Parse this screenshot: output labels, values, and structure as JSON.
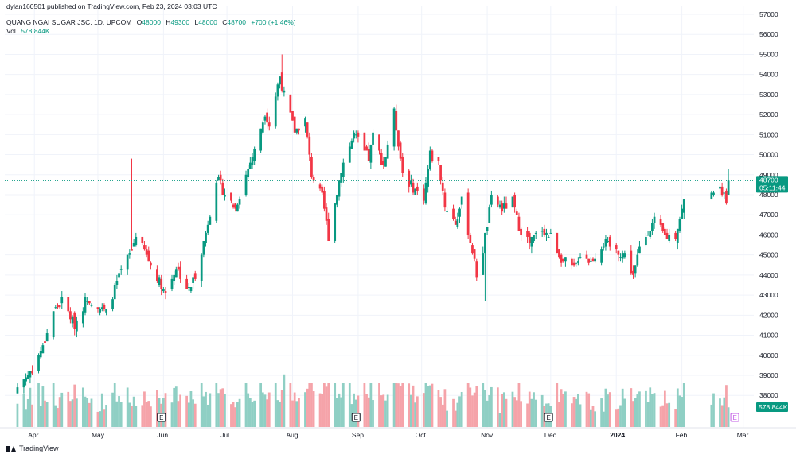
{
  "publisher_line": "dylan160501 published on TradingView.com, Feb 23, 2024 03:03 UTC",
  "legend": {
    "symbol": "QUANG NGAI SUGAR JSC, 1D, UPCOM",
    "open_label": "O",
    "open": "48000",
    "high_label": "H",
    "high": "49300",
    "low_label": "L",
    "low": "48000",
    "close_label": "C",
    "close": "48700",
    "change": "+700 (+1.46%)",
    "vol_label": "Vol",
    "vol": "578.844K"
  },
  "price_tag": {
    "price": "48700",
    "countdown": "05:11:44"
  },
  "volume_tag": "578.844K",
  "footer_brand": "TradingView",
  "earnings_marker": "E",
  "colors": {
    "up": "#089981",
    "down": "#F23645",
    "vol_up": "#8FCFC4",
    "vol_down": "#F5A3A9",
    "grid": "#F0F3FA",
    "text": "#131722",
    "earnings_next": "#C15BE5"
  },
  "chart_data": {
    "type": "candlestick",
    "title": "QUANG NGAI SUGAR JSC, 1D, UPCOM",
    "ylim": [
      36700,
      57000
    ],
    "y_ticks": [
      38000,
      39000,
      40000,
      41000,
      42000,
      43000,
      44000,
      45000,
      46000,
      47000,
      48000,
      49000,
      50000,
      51000,
      52000,
      53000,
      54000,
      55000,
      56000,
      57000
    ],
    "x_ticks": [
      "Apr",
      "May",
      "Jun",
      "Jul",
      "Aug",
      "Sep",
      "Oct",
      "Nov",
      "Dec",
      "2024",
      "Feb",
      "Mar"
    ],
    "grid": true,
    "earnings_markers": [
      "2023-05-31",
      "2023-08-31",
      "2023-11-30",
      "2024-02-26"
    ],
    "anchors": [
      [
        "2023-03-24",
        38400
      ],
      [
        "2023-03-31",
        39300
      ],
      [
        "2023-04-05",
        40400
      ],
      [
        "2023-04-10",
        42200
      ],
      [
        "2023-04-14",
        42700
      ],
      [
        "2023-04-20",
        41500
      ],
      [
        "2023-04-26",
        42900
      ],
      [
        "2023-05-05",
        42100
      ],
      [
        "2023-05-12",
        44200
      ],
      [
        "2023-05-17",
        45200
      ],
      [
        "2023-05-19",
        46100
      ],
      [
        "2023-05-26",
        44500
      ],
      [
        "2023-06-02",
        43100
      ],
      [
        "2023-06-07",
        44400
      ],
      [
        "2023-06-13",
        43200
      ],
      [
        "2023-06-16",
        44000
      ],
      [
        "2023-06-21",
        46100
      ],
      [
        "2023-06-26",
        48800
      ],
      [
        "2023-06-30",
        48100
      ],
      [
        "2023-07-05",
        47300
      ],
      [
        "2023-07-10",
        49000
      ],
      [
        "2023-07-14",
        50200
      ],
      [
        "2023-07-19",
        52100
      ],
      [
        "2023-07-21",
        51500
      ],
      [
        "2023-07-26",
        53900
      ],
      [
        "2023-07-28",
        53000
      ],
      [
        "2023-08-02",
        51200
      ],
      [
        "2023-08-07",
        51700
      ],
      [
        "2023-08-10",
        49000
      ],
      [
        "2023-08-15",
        47900
      ],
      [
        "2023-08-18",
        45900
      ],
      [
        "2023-08-24",
        49300
      ],
      [
        "2023-08-30",
        51000
      ],
      [
        "2023-09-06",
        49800
      ],
      [
        "2023-09-08",
        50900
      ],
      [
        "2023-09-13",
        49500
      ],
      [
        "2023-09-18",
        52100
      ],
      [
        "2023-09-22",
        49100
      ],
      [
        "2023-09-27",
        48300
      ],
      [
        "2023-10-02",
        47900
      ],
      [
        "2023-10-05",
        50000
      ],
      [
        "2023-10-09",
        49600
      ],
      [
        "2023-10-12",
        47500
      ],
      [
        "2023-10-17",
        46600
      ],
      [
        "2023-10-20",
        47700
      ],
      [
        "2023-10-25",
        45200
      ],
      [
        "2023-10-27",
        44000
      ],
      [
        "2023-10-30",
        45300
      ],
      [
        "2023-11-03",
        47800
      ],
      [
        "2023-11-08",
        47300
      ],
      [
        "2023-11-13",
        47700
      ],
      [
        "2023-11-16",
        46400
      ],
      [
        "2023-11-21",
        45600
      ],
      [
        "2023-11-27",
        46300
      ],
      [
        "2023-12-01",
        45900
      ],
      [
        "2023-12-06",
        44800
      ],
      [
        "2023-12-12",
        44300
      ],
      [
        "2023-12-15",
        45100
      ],
      [
        "2023-12-20",
        44700
      ],
      [
        "2023-12-26",
        45600
      ],
      [
        "2023-12-29",
        45400
      ],
      [
        "2024-01-05",
        45000
      ],
      [
        "2024-01-09",
        44000
      ],
      [
        "2024-01-12",
        45300
      ],
      [
        "2024-01-16",
        46200
      ],
      [
        "2024-01-19",
        46700
      ],
      [
        "2024-01-24",
        45900
      ],
      [
        "2024-01-29",
        46000
      ],
      [
        "2024-02-02",
        47700
      ],
      [
        "2024-02-15",
        48300
      ],
      [
        "2024-02-20",
        48200
      ],
      [
        "2024-02-22",
        47800
      ],
      [
        "2024-02-23",
        48700
      ]
    ],
    "last_candle": {
      "date": "2024-02-23",
      "open": 48000,
      "high": 49300,
      "low": 48000,
      "close": 48700,
      "volume": 578844
    },
    "volume_note": "volume histogram in lower pane; volume values approximate"
  }
}
